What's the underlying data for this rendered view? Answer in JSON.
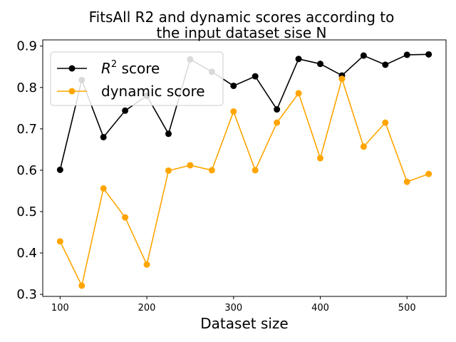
{
  "chart_data": {
    "type": "line",
    "title": [
      "FitsAll R2 and dynamic scores according to",
      "the input dataset sise N"
    ],
    "xlabel": "Dataset size",
    "ylabel": "",
    "xlim": [
      80,
      545
    ],
    "ylim": [
      0.295,
      0.915
    ],
    "xticks": [
      100,
      200,
      300,
      400,
      500
    ],
    "yticks": [
      0.3,
      0.4,
      0.5,
      0.6,
      0.7,
      0.8,
      0.9
    ],
    "x": [
      100,
      125,
      150,
      175,
      200,
      225,
      250,
      275,
      300,
      325,
      350,
      375,
      400,
      425,
      450,
      475,
      500,
      525
    ],
    "grid": false,
    "legend_position": "upper-left",
    "series": [
      {
        "name": "R² score",
        "name_base": "R",
        "name_sup": "2",
        "name_rest": " score",
        "color": "#000000",
        "values": [
          0.601,
          0.818,
          0.68,
          0.744,
          0.78,
          0.688,
          0.868,
          0.838,
          0.804,
          0.827,
          0.747,
          0.869,
          0.857,
          0.829,
          0.877,
          0.855,
          0.879,
          0.88
        ]
      },
      {
        "name": "dynamic score",
        "color": "#ffa500",
        "values": [
          0.428,
          0.321,
          0.556,
          0.486,
          0.372,
          0.599,
          0.612,
          0.6,
          0.742,
          0.6,
          0.715,
          0.786,
          0.629,
          0.821,
          0.657,
          0.715,
          0.572,
          0.591
        ]
      }
    ]
  }
}
